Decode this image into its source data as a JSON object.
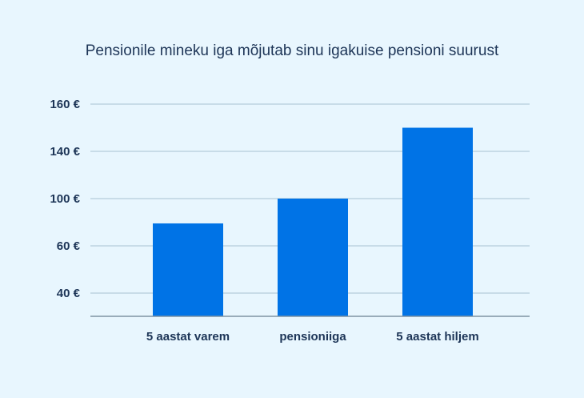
{
  "chart_data": {
    "type": "bar",
    "title": "Pensionile mineku iga mõjutab sinu igakuise pensioni suurust",
    "categories": [
      "5 aastat varem",
      "pensioniiga",
      "5 aastat hiljem"
    ],
    "values": [
      79,
      100,
      150
    ],
    "yticks": [
      "40 €",
      "60 €",
      "100 €",
      "140 €",
      "160 €"
    ],
    "ylim": [
      30,
      160
    ],
    "xlabel": "",
    "ylabel": "",
    "grid": true,
    "bar_color": "#0073e6",
    "grid_color": "#a9c1d3",
    "axis_color": "#7f93a3",
    "text_color": "#1d3557",
    "background": "#e8f6fe"
  }
}
